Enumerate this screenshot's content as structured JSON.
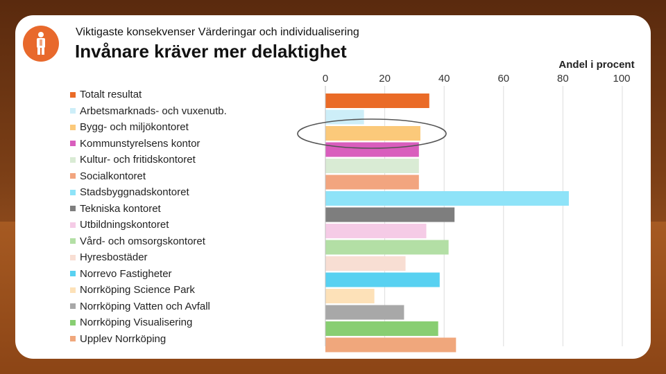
{
  "header": {
    "subtitle": "Viktigaste konsekvenser Värderingar och individualisering",
    "title": "Invånare kräver mer delaktighet",
    "logo_icon": "person-icon"
  },
  "colors": {
    "accent": "#e8692c"
  },
  "chart_data": {
    "type": "bar",
    "orientation": "horizontal",
    "title": "Invånare kräver mer delaktighet",
    "xlabel": "Andel i procent",
    "ylabel": "",
    "xlim": [
      0,
      100
    ],
    "xticks": [
      "0",
      "20",
      "40",
      "60",
      "80",
      "100"
    ],
    "grid": true,
    "legend_position": "left",
    "categories": [
      "Totalt resultat",
      "Arbetsmarknads- och vuxenutb.",
      "Bygg- och miljökontoret",
      "Kommunstyrelsens kontor",
      "Kultur- och fritidskontoret",
      "Socialkontoret",
      "Stadsbyggnadskontoret",
      "Tekniska kontoret",
      "Utbildningskontoret",
      "Vård- och omsorgskontoret",
      "Hyresbostäder",
      "Norrevo Fastigheter",
      "Norrköping Science Park",
      "Norrköping Vatten och Avfall",
      "Norrköping Visualisering",
      "Upplev Norrköping"
    ],
    "values": [
      35,
      13,
      32,
      31.5,
      31.5,
      31.5,
      82,
      43.5,
      34,
      41.5,
      27,
      38.5,
      16.5,
      26.5,
      38,
      44
    ],
    "colors": [
      "#ea6b27",
      "#cdeef8",
      "#fbc97a",
      "#d95ebd",
      "#d9ebd4",
      "#f2a57f",
      "#8ee3f8",
      "#7e7e7e",
      "#f5cbe6",
      "#b3dfa5",
      "#f8ded3",
      "#58d1f1",
      "#fde1b8",
      "#a8a8a8",
      "#88ce72",
      "#f0a77c"
    ],
    "annotations": [
      {
        "type": "ellipse",
        "highlight": "Bygg- och miljökontoret"
      }
    ]
  }
}
